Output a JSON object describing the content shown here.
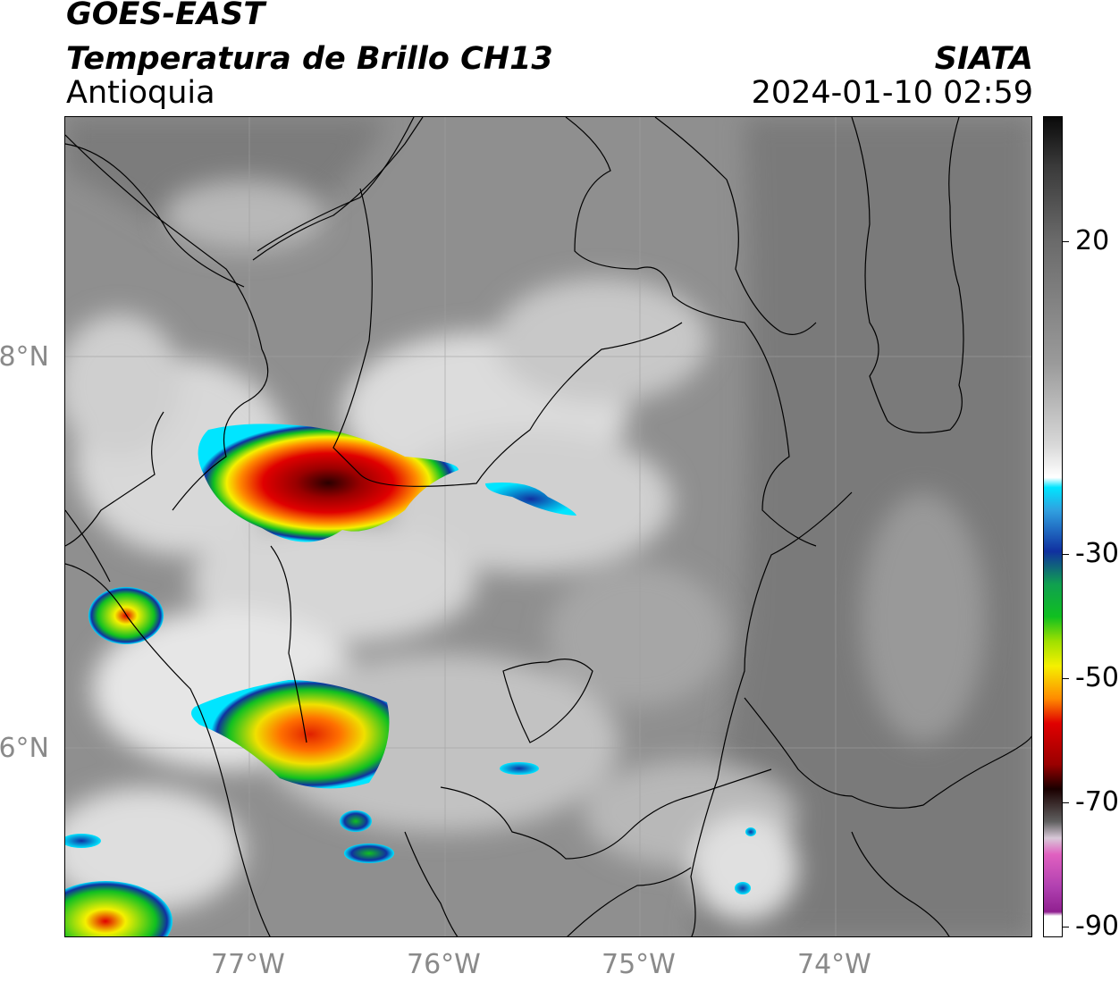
{
  "header": {
    "satellite": "GOES-EAST",
    "product": "Temperatura de Brillo CH13",
    "region": "Antioquia",
    "agency": "SIATA",
    "datetime": "2024-01-10 02:59"
  },
  "axes": {
    "lon_ticks": [
      "77°W",
      "76°W",
      "75°W",
      "74°W"
    ],
    "lat_ticks": [
      "8°N",
      "6°N"
    ]
  },
  "colorbar": {
    "ticks": [
      "20",
      "-30",
      "-50",
      "-70",
      "-90"
    ],
    "colors": {
      "warm_top": "#111111",
      "gray": "#8a8a8a",
      "white": "#f2f2f2",
      "cyan": "#00e5ff",
      "blue": "#1030a0",
      "green": "#10c020",
      "yellow": "#f5f000",
      "orange": "#ff8a00",
      "red": "#e00000",
      "darkred": "#3a0000",
      "pink": "#e060c0",
      "purple": "#902090"
    }
  }
}
